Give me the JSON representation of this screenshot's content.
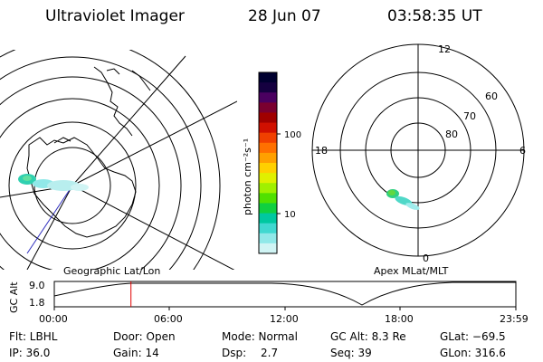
{
  "header": {
    "instrument": "Ultraviolet Imager",
    "date": "28 Jun 07",
    "time": "03:58:35 UT"
  },
  "left_map": {
    "label": "Geographic Lat/Lon"
  },
  "right_map": {
    "label": "Apex MLat/MLT",
    "mlt_labels": [
      "12",
      "18",
      "6",
      "0"
    ],
    "mlat_labels": [
      "60",
      "70",
      "80"
    ]
  },
  "colorbar": {
    "unit_label": "photon cm⁻²s⁻¹",
    "tick_labels": [
      "100",
      "10"
    ],
    "colors": [
      "#000030",
      "#150040",
      "#4a0060",
      "#7a0030",
      "#a00000",
      "#d01000",
      "#f04000",
      "#ff7000",
      "#ffa000",
      "#ffd000",
      "#e0f000",
      "#a0f000",
      "#50e000",
      "#10d040",
      "#00c8a0",
      "#40d8d0",
      "#90e8e8",
      "#d0f4f4"
    ]
  },
  "timeline": {
    "axis_label": "GC Alt",
    "y_ticks": [
      "9.0",
      "1.8"
    ],
    "x_ticks": [
      "00:00",
      "06:00",
      "12:00",
      "18:00",
      "23:59"
    ],
    "current_time_fraction": 0.166
  },
  "status": {
    "row1": {
      "filter": "Flt: LBHL",
      "door": "Door: Open",
      "mode": "Mode: Normal",
      "gc_alt": "GC Alt: 8.3 Re",
      "glat": "GLat: −69.5"
    },
    "row2": {
      "ip": "IP: 36.0",
      "gain": "Gain: 14",
      "dsp_label": "Dsp:",
      "dsp_value": "2.7",
      "seq": "Seq: 39",
      "glon": "GLon: 316.6"
    }
  }
}
